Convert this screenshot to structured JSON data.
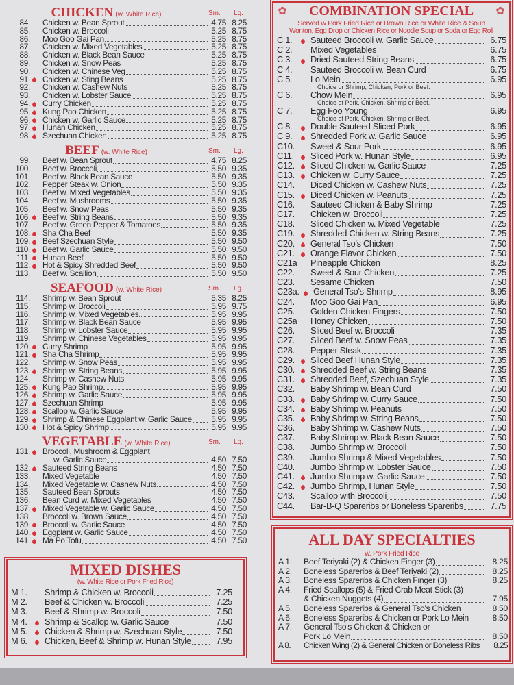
{
  "colors": {
    "accent": "#c9343c",
    "background": "#e3e3e5"
  },
  "icons": {
    "spicy": "flame-icon"
  },
  "left_sections": [
    {
      "id": "chicken",
      "title": "CHICKEN",
      "note": "(w. White Rice)",
      "sm_label": "Sm.",
      "lg_label": "Lg.",
      "items": [
        [
          "84.",
          "Chicken w. Bean Sprout",
          "4.75",
          "8.25",
          false
        ],
        [
          "85.",
          "Chicken w. Broccoli",
          "5.25",
          "8.75",
          false
        ],
        [
          "86.",
          "Moo Goo Gai Pan",
          "5.25",
          "8.75",
          false
        ],
        [
          "87.",
          "Chicken w. Mixed Vegetables",
          "5.25",
          "8.75",
          false
        ],
        [
          "88.",
          "Chicken w. Black Bean Sauce",
          "5.25",
          "8.75",
          false
        ],
        [
          "89.",
          "Chicken w. Snow Peas",
          "5.25",
          "8.75",
          false
        ],
        [
          "90.",
          "Chicken w. Chinese Veg",
          "5.25",
          "8.75",
          false
        ],
        [
          "91.",
          "Chicken w. Sting Beans",
          "5.25",
          "8.75",
          true
        ],
        [
          "92.",
          "Chicken w. Cashew Nuts",
          "5.25",
          "8.75",
          false
        ],
        [
          "93.",
          "Chicken w. Lobster Sauce",
          "5.25",
          "8.75",
          false
        ],
        [
          "94.",
          "Curry Chicken",
          "5.25",
          "8.75",
          true
        ],
        [
          "95.",
          "Kung Pao Chicken",
          "5.25",
          "8.75",
          true
        ],
        [
          "96.",
          "Chicken w. Garlic Sauce",
          "5.25",
          "8.75",
          true
        ],
        [
          "97.",
          "Hunan Chicken",
          "5.25",
          "8.75",
          true
        ],
        [
          "98.",
          "Szechuan Chicken",
          "5.25",
          "8.75",
          true
        ]
      ]
    },
    {
      "id": "beef",
      "title": "BEEF",
      "note": "(w. White Rice)",
      "sm_label": "Sm.",
      "lg_label": "Lg.",
      "items": [
        [
          "99.",
          "Beef w. Bean Sprout",
          "4.75",
          "8.25",
          false
        ],
        [
          "100.",
          "Beef w. Broccoli",
          "5.50",
          "9.35",
          false
        ],
        [
          "101.",
          "Beef w. Black Bean Sauce",
          "5.50",
          "9.35",
          false
        ],
        [
          "102.",
          "Pepper Steak w. Onion",
          "5.50",
          "9.35",
          false
        ],
        [
          "103.",
          "Beef w. Mixed Vegetables",
          "5.50",
          "9.35",
          false
        ],
        [
          "104.",
          "Beef w. Mushrooms",
          "5.50",
          "9.35",
          false
        ],
        [
          "105.",
          "Beef w. Snow Peas",
          "5.50",
          "9.35",
          false
        ],
        [
          "106.",
          "Beef w. String Beans",
          "5.50",
          "9.35",
          true
        ],
        [
          "107.",
          "Beef w. Green Pepper & Tomatoes",
          "5.50",
          "9.35",
          false
        ],
        [
          "108.",
          "Sha Cha Beef",
          "5.50",
          "9.35",
          true
        ],
        [
          "109.",
          "Beef Szechuan Style",
          "5.50",
          "9.50",
          true
        ],
        [
          "110.",
          "Beef w. Garlic Sauce",
          "5.50",
          "9.50",
          true
        ],
        [
          "111.",
          "Hunan Beef",
          "5.50",
          "9.50",
          true
        ],
        [
          "112.",
          "Hot & Spicy Shredded Beef",
          "5.50",
          "9.50",
          true
        ],
        [
          "113.",
          "Beef w. Scallion",
          "5.50",
          "9.50",
          false
        ]
      ]
    },
    {
      "id": "seafood",
      "title": "SEAFOOD",
      "note": "(w. White Rice)",
      "sm_label": "Sm.",
      "lg_label": "Lg.",
      "items": [
        [
          "114.",
          "Shrimp w. Bean Sprout",
          "5.35",
          "8.25",
          false
        ],
        [
          "115.",
          "Shrimp w. Broccoli",
          "5.95",
          "9.75",
          false
        ],
        [
          "116.",
          "Shrimp w. Mixed Vegetables",
          "5.95",
          "9.95",
          false
        ],
        [
          "117.",
          "Shrimp w. Black Bean Sauce",
          "5.95",
          "9.95",
          false
        ],
        [
          "118.",
          "Shrimp w. Lobster Sauce",
          "5.95",
          "9.95",
          false
        ],
        [
          "119.",
          "Shrimp w. Chinese Vegetables",
          "5.95",
          "9.95",
          false
        ],
        [
          "120.",
          "Curry Shrimp",
          "5.95",
          "9.95",
          true
        ],
        [
          "121.",
          "Sha Cha Shrimp",
          "5.95",
          "9.95",
          true
        ],
        [
          "122.",
          "Shrimp w. Snow Peas",
          "5.95",
          "9.95",
          false
        ],
        [
          "123.",
          "Shrimp w. String Beans",
          "5.95",
          "9.95",
          true
        ],
        [
          "124.",
          "Shrimp w. Cashew Nuts",
          "5.95",
          "9.95",
          false
        ],
        [
          "125.",
          "Kung Pao Shrimp",
          "5.95",
          "9.95",
          true
        ],
        [
          "126.",
          "Shrimp w. Garlic Sauce",
          "5.95",
          "9.95",
          true
        ],
        [
          "127.",
          "Szechuan Shrimp",
          "5.95",
          "9.95",
          true
        ],
        [
          "128.",
          "Scallop w. Garlic Sauce",
          "5.95",
          "9.95",
          true
        ],
        [
          "129.",
          "Shrimp & Chinese Eggplant w. Garlic Sauce",
          "5.95",
          "9.95",
          true
        ],
        [
          "130.",
          "Hot & Spicy Shrimp",
          "5.95",
          "9.95",
          true
        ]
      ]
    },
    {
      "id": "vegetable",
      "title": "VEGETABLE",
      "note": "(w. White Rice)",
      "sm_label": "Sm.",
      "lg_label": "Lg.",
      "items": [
        [
          "131.",
          "Broccoli, Mushroom & Eggplant",
          "",
          "",
          true,
          "w. Garlic Sauce",
          "4.50",
          "7.50"
        ],
        [
          "132.",
          "Sauteed String Beans",
          "4.50",
          "7.50",
          true
        ],
        [
          "133.",
          "Mixed Vegetable",
          "4.50",
          "7.50",
          false
        ],
        [
          "134.",
          "Mixed Vegetable w. Cashew Nuts",
          "4.50",
          "7.50",
          false
        ],
        [
          "135.",
          "Sauteed Bean Sprouts",
          "4.50",
          "7.50",
          false
        ],
        [
          "136.",
          "Bean Curd w. Mixed Vegetables",
          "4.50",
          "7.50",
          false
        ],
        [
          "137.",
          "Mixed Vegetable w. Garlic Sauce",
          "4.50",
          "7.50",
          true
        ],
        [
          "138.",
          "Broccoli w. Brown Sauce",
          "4.50",
          "7.50",
          false
        ],
        [
          "139.",
          "Broccoli w. Garlic Sauce",
          "4.50",
          "7.50",
          true
        ],
        [
          "140.",
          "Eggplant w. Garlic Sauce",
          "4.50",
          "7.50",
          true
        ],
        [
          "141.",
          "Ma Po Tofu",
          "4.50",
          "7.50",
          true
        ]
      ]
    }
  ],
  "mixed": {
    "title": "MIXED DISHES",
    "note": "(w. White Rice or Pork Fried Rice)",
    "items": [
      [
        "M 1.",
        "Shrimp & Chicken w. Broccoli",
        "7.25",
        false
      ],
      [
        "M 2.",
        "Beef & Chicken w. Broccoli",
        "7.25",
        false
      ],
      [
        "M 3.",
        "Beef & Shrimp w. Broccoli",
        "7.50",
        false
      ],
      [
        "M 4.",
        "Shrimp & Scallop w. Garlic Sauce",
        "7.50",
        true
      ],
      [
        "M 5.",
        "Chicken & Shrimp w. Szechuan Style",
        "7.50",
        true
      ],
      [
        "M 6.",
        "Chicken, Beef & Shrimp w. Hunan Style",
        "7.95",
        true
      ]
    ]
  },
  "combo": {
    "title": "COMBINATION SPECIAL",
    "subtitle1": "Served w Pork Fried Rice or Brown Rice or White Rice & Soup",
    "subtitle2": "Wonton, Egg Drop or Chicken Rice or Noodle Soup or Soda or Egg Roll",
    "items": [
      [
        "C 1.",
        "Sauteed Broccoli w. Garlic Sauce",
        "6.75",
        true
      ],
      [
        "C 2.",
        "Mixed Vegetables",
        "6.75",
        false
      ],
      [
        "C 3.",
        "Dried Sauteed String Beans",
        "6.75",
        true
      ],
      [
        "C 4.",
        "Sauteed Broccoli w. Bean Curd",
        "6.75",
        false
      ],
      [
        "C 5.",
        "Lo Mein",
        "6.95",
        false,
        "Choice or Shrimp, Chicken, Pork or Beef."
      ],
      [
        "C 6.",
        "Chow Mein",
        "6.95",
        false,
        "Choice of Pork, Chicken, Shrimp or Beef."
      ],
      [
        "C 7.",
        "Egg Foo Young",
        "6.95",
        false,
        "Choice of Pork, Chicken, Shrimp or Beef."
      ],
      [
        "C 8.",
        "Double Sauteed Sliced Pork",
        "6.95",
        true
      ],
      [
        "C 9.",
        "Shredded Pork w. Garlic Sauce",
        "6.95",
        true
      ],
      [
        "C10.",
        "Sweet & Sour Pork",
        "6.95",
        false
      ],
      [
        "C11.",
        "Sliced Pork w. Hunan Style",
        "6.95",
        true
      ],
      [
        "C12.",
        "Sliced Chicken w. Garlic Sauce",
        "7.25",
        true
      ],
      [
        "C13.",
        "Chicken w. Curry Sauce",
        "7.25",
        true
      ],
      [
        "C14.",
        "Diced Chicken w. Cashew Nuts",
        "7.25",
        false
      ],
      [
        "C15.",
        "Diced Chicken w. Peanuts",
        "7.25",
        true
      ],
      [
        "C16.",
        "Sauteed Chicken & Baby Shrimp",
        "7.25",
        false
      ],
      [
        "C17.",
        "Chicken w. Broccoli",
        "7.25",
        false
      ],
      [
        "C18.",
        "Sliced Chicken w. Mixed Vegetable",
        "7.25",
        false
      ],
      [
        "C19.",
        "Shredded Chicken w. String Beans",
        "7.25",
        true
      ],
      [
        "C20.",
        "General Tso's Chicken",
        "7.50",
        true
      ],
      [
        "C21.",
        "Orange Flavor Chicken",
        "7.50",
        true
      ],
      [
        "C21a",
        "Pineapple Chicken",
        "8.25",
        false
      ],
      [
        "C22.",
        "Sweet & Sour Chicken",
        "7.25",
        false
      ],
      [
        "C23.",
        "Sesame Chicken",
        "7.50",
        false
      ],
      [
        "C23a.",
        "General Tso's Shrimp",
        "8.95",
        true
      ],
      [
        "C24.",
        "Moo Goo Gai Pan",
        "6.95",
        false
      ],
      [
        "C25.",
        "Golden Chicken Fingers",
        "7.50",
        false
      ],
      [
        "C25a",
        "Honey Chicken",
        "7.50",
        false
      ],
      [
        "C26.",
        "Sliced Beef w. Broccoli",
        "7.35",
        false
      ],
      [
        "C27.",
        "Sliced Beef w. Snow Peas",
        "7.35",
        false
      ],
      [
        "C28.",
        "Pepper Steak",
        "7.35",
        false
      ],
      [
        "C29.",
        "Sliced Beef Hunan Style",
        "7.35",
        true
      ],
      [
        "C30.",
        "Shredded Beef w. String Beans",
        "7.35",
        true
      ],
      [
        "C31.",
        "Shredded Beef, Szechuan Style",
        "7.35",
        true
      ],
      [
        "C32.",
        "Baby Shrimp w. Bean Curd",
        "7.50",
        false
      ],
      [
        "C33.",
        "Baby Shrimp w. Curry Sauce",
        "7.50",
        true
      ],
      [
        "C34.",
        "Baby Shrimp w. Peanuts",
        "7.50",
        true
      ],
      [
        "C35.",
        "Baby Shrimp w. String Beans",
        "7.50",
        true
      ],
      [
        "C36.",
        "Baby Shrimp w. Cashew Nuts",
        "7.50",
        false
      ],
      [
        "C37.",
        "Baby Shrimp w. Black Bean Sauce",
        "7.50",
        false
      ],
      [
        "C38.",
        "Jumbo Shrimp w. Broccoli",
        "7.50",
        false
      ],
      [
        "C39.",
        "Jumbo Shrimp & Mixed Vegetables",
        "7.50",
        false
      ],
      [
        "C40.",
        "Jumbo Shrimp w. Lobster Sauce",
        "7.50",
        false
      ],
      [
        "C41.",
        "Jumbo Shrimp w. Garlic Sauce",
        "7.50",
        true
      ],
      [
        "C42.",
        "Jumbo Shrimp, Hunan Style",
        "7.50",
        true
      ],
      [
        "C43.",
        "Scallop with Broccoli",
        "7.50",
        false
      ],
      [
        "C44.",
        "Bar-B-Q Spareribs or Boneless Spareribs",
        "7.75",
        false
      ]
    ]
  },
  "allday": {
    "title": "ALL DAY SPECIALTIES",
    "note": "w. Pork Fried Rice",
    "items": [
      [
        "A 1.",
        "Beef Teriyaki (2) & Chicken Finger (3)",
        "8.25"
      ],
      [
        "A 2.",
        "Boneless Spareribs & Beef Teriyaki (2)",
        "8.25"
      ],
      [
        "A 3.",
        "Boneless Spareribs & Chicken Finger (3)",
        "8.25"
      ],
      [
        "A 4.",
        "Fried Scallops  (5) & Fried Crab Meat Stick (3)",
        "",
        "& Chicken Nuggets (4)",
        "7.95"
      ],
      [
        "A 5.",
        "Boneless Spareribs & General Tso's Chicken",
        "8.50"
      ],
      [
        "A 6.",
        "Boneless Spareribs & Chicken or Pork Lo Mein",
        "8.50"
      ],
      [
        "A 7.",
        "General Tso's Chicken & Chicken or",
        "",
        "Pork Lo Mein",
        "8.50"
      ],
      [
        "A 8.",
        "Chicken Wing (2) & General Chicken or Boneless Ribs",
        "8.25"
      ]
    ]
  }
}
